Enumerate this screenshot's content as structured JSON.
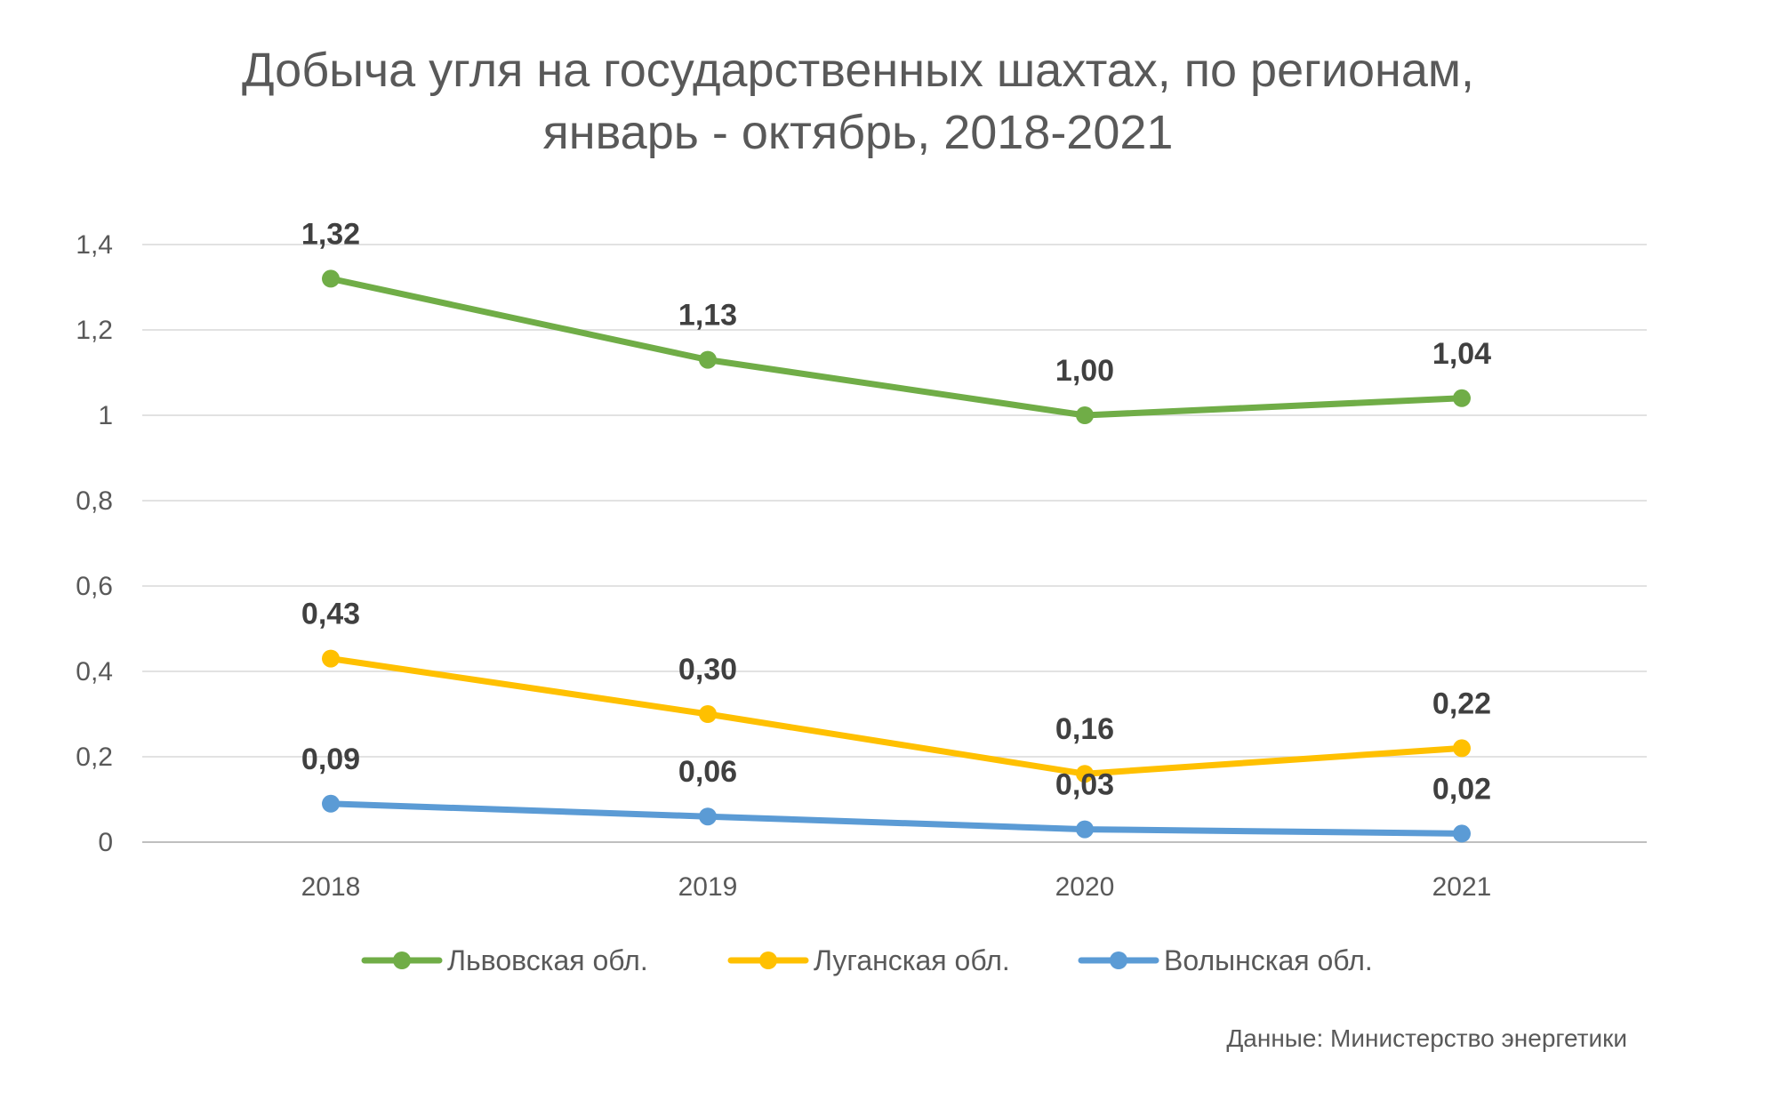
{
  "chart_data": {
    "type": "line",
    "title": "Добыча угля на государственных шахтах, по регионам, январь - октябрь, 2018-2021",
    "title_lines": [
      "Добыча угля на государственных шахтах, по регионам,",
      "январь - октябрь, 2018-2021"
    ],
    "x": [
      "2018",
      "2019",
      "2020",
      "2021"
    ],
    "ylim": [
      0,
      1.4
    ],
    "yticks": [
      0,
      0.2,
      0.4,
      0.6,
      0.8,
      1,
      1.2,
      1.4
    ],
    "ytick_labels": [
      "0",
      "0,2",
      "0,4",
      "0,6",
      "0,8",
      "1",
      "1,2",
      "1,4"
    ],
    "grid": true,
    "legend_position": "bottom",
    "series": [
      {
        "name": "Львовская обл.",
        "color": "#70AD47",
        "values": [
          1.32,
          1.13,
          1.0,
          1.04
        ],
        "labels": [
          "1,32",
          "1,13",
          "1,00",
          "1,04"
        ]
      },
      {
        "name": "Луганская обл.",
        "color": "#FFC000",
        "values": [
          0.43,
          0.3,
          0.16,
          0.22
        ],
        "labels": [
          "0,43",
          "0,30",
          "0,16",
          "0,22"
        ]
      },
      {
        "name": "Волынская обл.",
        "color": "#5B9BD5",
        "values": [
          0.09,
          0.06,
          0.03,
          0.02
        ],
        "labels": [
          "0,09",
          "0,06",
          "0,03",
          "0,02"
        ]
      }
    ],
    "source": "Данные: Министерство энергетики"
  }
}
